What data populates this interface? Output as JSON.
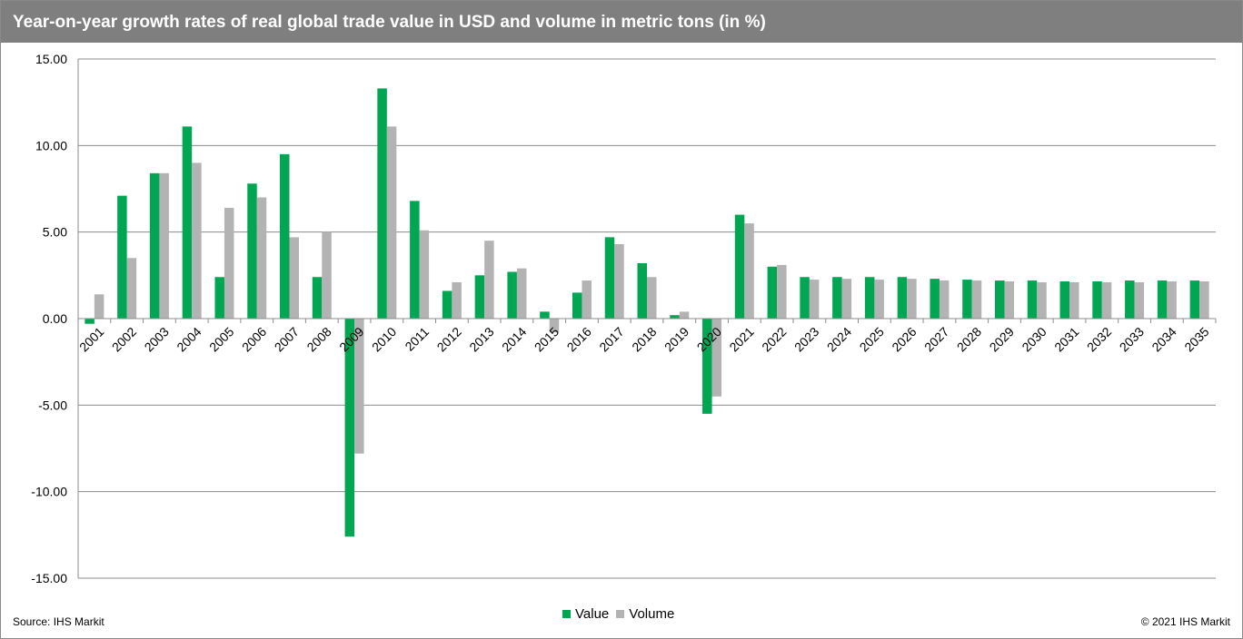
{
  "title": "Year-on-year growth rates of real global trade value in USD and volume in metric tons (in %)",
  "source": "Source: IHS Markit",
  "copyright": "© 2021 IHS Markit",
  "colors": {
    "title_bar": "#7f7f7f",
    "value": "#00a651",
    "volume": "#b3b3b3",
    "grid": "#8c8c8c"
  },
  "legend": {
    "value_label": "Value",
    "volume_label": "Volume",
    "placement": "bottom-center"
  },
  "chart_data": {
    "type": "bar",
    "title": "Year-on-year growth rates of real global trade value in USD and volume in metric tons (in %)",
    "xlabel": "",
    "ylabel": "",
    "ylim": [
      -15,
      15
    ],
    "yticks": [
      15,
      10,
      5,
      0,
      -5,
      -10,
      -15
    ],
    "ytick_labels": [
      "15.00",
      "10.00",
      "5.00",
      "0.00",
      "-5.00",
      "-10.00",
      "-15.00"
    ],
    "grid": true,
    "categories": [
      "2001",
      "2002",
      "2003",
      "2004",
      "2005",
      "2006",
      "2007",
      "2008",
      "2009",
      "2010",
      "2011",
      "2012",
      "2013",
      "2014",
      "2015",
      "2016",
      "2017",
      "2018",
      "2019",
      "2020",
      "2021",
      "2022",
      "2023",
      "2024",
      "2025",
      "2026",
      "2027",
      "2028",
      "2029",
      "2030",
      "2031",
      "2032",
      "2033",
      "2034",
      "2035"
    ],
    "series": [
      {
        "name": "Value",
        "values": [
          -0.3,
          7.1,
          8.4,
          11.1,
          2.4,
          7.8,
          9.5,
          2.4,
          -12.6,
          13.3,
          6.8,
          1.6,
          2.5,
          2.7,
          0.4,
          1.5,
          4.7,
          3.2,
          0.2,
          -5.5,
          6.0,
          3.0,
          2.4,
          2.4,
          2.4,
          2.4,
          2.3,
          2.25,
          2.2,
          2.2,
          2.15,
          2.15,
          2.2,
          2.2,
          2.2
        ]
      },
      {
        "name": "Volume",
        "values": [
          1.4,
          3.5,
          8.4,
          9.0,
          6.4,
          7.0,
          4.7,
          5.0,
          -7.8,
          11.1,
          5.1,
          2.1,
          4.5,
          2.9,
          -0.8,
          2.2,
          4.3,
          2.4,
          0.4,
          -4.5,
          5.5,
          3.1,
          2.25,
          2.3,
          2.25,
          2.3,
          2.2,
          2.2,
          2.15,
          2.1,
          2.1,
          2.1,
          2.1,
          2.15,
          2.15
        ]
      }
    ]
  }
}
